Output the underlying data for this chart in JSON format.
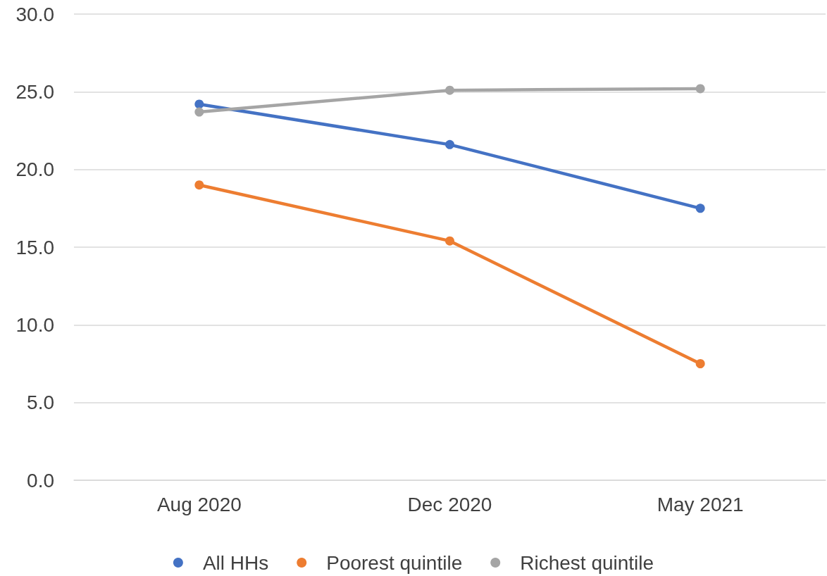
{
  "chart_data": {
    "type": "line",
    "categories": [
      "Aug 2020",
      "Dec 2020",
      "May 2021"
    ],
    "series": [
      {
        "name": "All HHs",
        "color": "#4472c4",
        "values": [
          24.2,
          21.6,
          17.5
        ]
      },
      {
        "name": "Poorest quintile",
        "color": "#ed7d31",
        "values": [
          19.0,
          15.4,
          7.5
        ]
      },
      {
        "name": "Richest quintile",
        "color": "#a5a5a5",
        "values": [
          23.7,
          25.1,
          25.2
        ]
      }
    ],
    "ylim": [
      0,
      30
    ],
    "yticks": [
      {
        "value": 0,
        "label": "0.0"
      },
      {
        "value": 5,
        "label": "5.0"
      },
      {
        "value": 10,
        "label": "10.0"
      },
      {
        "value": 15,
        "label": "15.0"
      },
      {
        "value": 20,
        "label": "20.0"
      },
      {
        "value": 25,
        "label": "25.0"
      },
      {
        "value": 30,
        "label": "30.0"
      }
    ],
    "grid": "y",
    "legend": "bottom",
    "marker": "circle",
    "line_style": "solid"
  }
}
